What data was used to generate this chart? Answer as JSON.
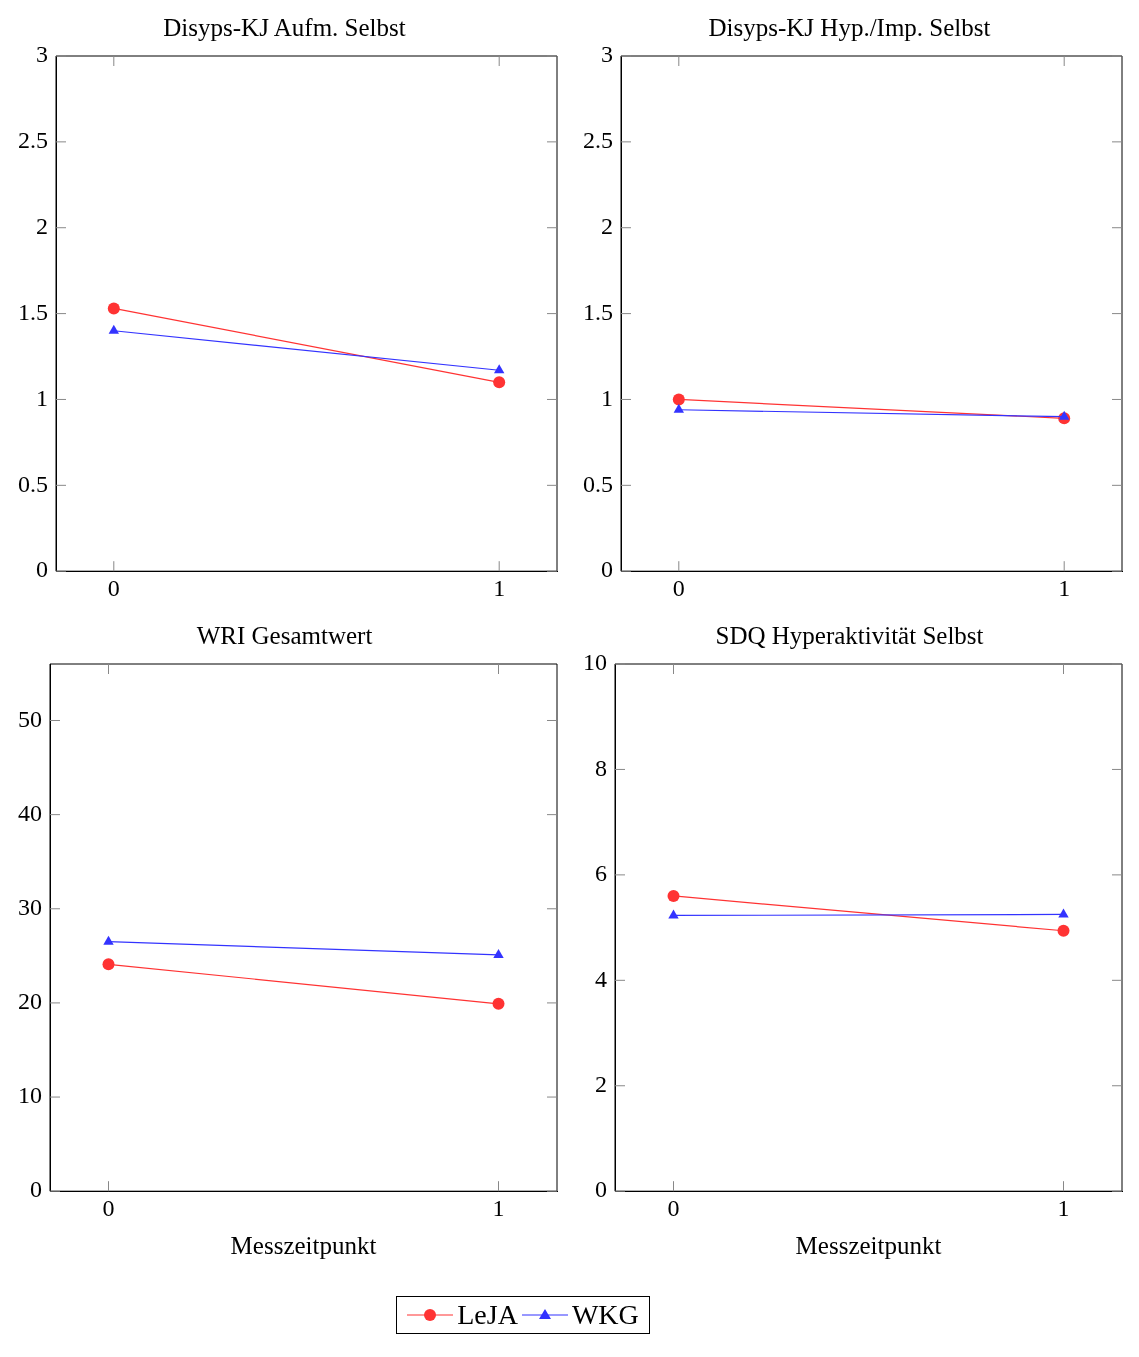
{
  "chart_data": [
    {
      "type": "line",
      "title": "Disyps-KJ Aufm. Selbst",
      "legend": "bottom",
      "categories": [
        "0",
        "1"
      ],
      "ylim": [
        0,
        3
      ],
      "yticks": [
        0,
        0.5,
        1,
        1.5,
        2,
        2.5,
        3
      ],
      "series": [
        {
          "name": "LeJA",
          "color": "#ff3333",
          "marker": "circle",
          "values": [
            1.53,
            1.1
          ]
        },
        {
          "name": "WKG",
          "color": "#3333ff",
          "marker": "triangle",
          "values": [
            1.4,
            1.17
          ]
        }
      ]
    },
    {
      "type": "line",
      "title": "Disyps-KJ Hyp./Imp. Selbst",
      "legend": "bottom",
      "categories": [
        "0",
        "1"
      ],
      "ylim": [
        0,
        3
      ],
      "yticks": [
        0,
        0.5,
        1,
        1.5,
        2,
        2.5,
        3
      ],
      "series": [
        {
          "name": "LeJA",
          "color": "#ff3333",
          "marker": "circle",
          "values": [
            1.0,
            0.89
          ]
        },
        {
          "name": "WKG",
          "color": "#3333ff",
          "marker": "triangle",
          "values": [
            0.94,
            0.9
          ]
        }
      ]
    },
    {
      "type": "line",
      "title": "WRI Gesamtwert",
      "legend": "bottom",
      "xlabel": "Messzeitpunkt",
      "categories": [
        "0",
        "1"
      ],
      "ylim": [
        0,
        56
      ],
      "yticks": [
        0,
        10,
        20,
        30,
        40,
        50
      ],
      "series": [
        {
          "name": "LeJA",
          "color": "#ff3333",
          "marker": "circle",
          "values": [
            24.1,
            19.9
          ]
        },
        {
          "name": "WKG",
          "color": "#3333ff",
          "marker": "triangle",
          "values": [
            26.5,
            25.1
          ]
        }
      ]
    },
    {
      "type": "line",
      "title": "SDQ Hyperaktivität Selbst",
      "xlabel": "Messzeitpunkt",
      "categories": [
        "0",
        "1"
      ],
      "ylim": [
        0,
        10
      ],
      "yticks": [
        0,
        2,
        4,
        6,
        8,
        10
      ],
      "legend": "bottom",
      "series": [
        {
          "name": "LeJA",
          "color": "#ff3333",
          "marker": "circle",
          "values": [
            5.6,
            4.94
          ]
        },
        {
          "name": "WKG",
          "color": "#3333ff",
          "marker": "triangle",
          "values": [
            5.23,
            5.25
          ]
        }
      ]
    }
  ]
}
